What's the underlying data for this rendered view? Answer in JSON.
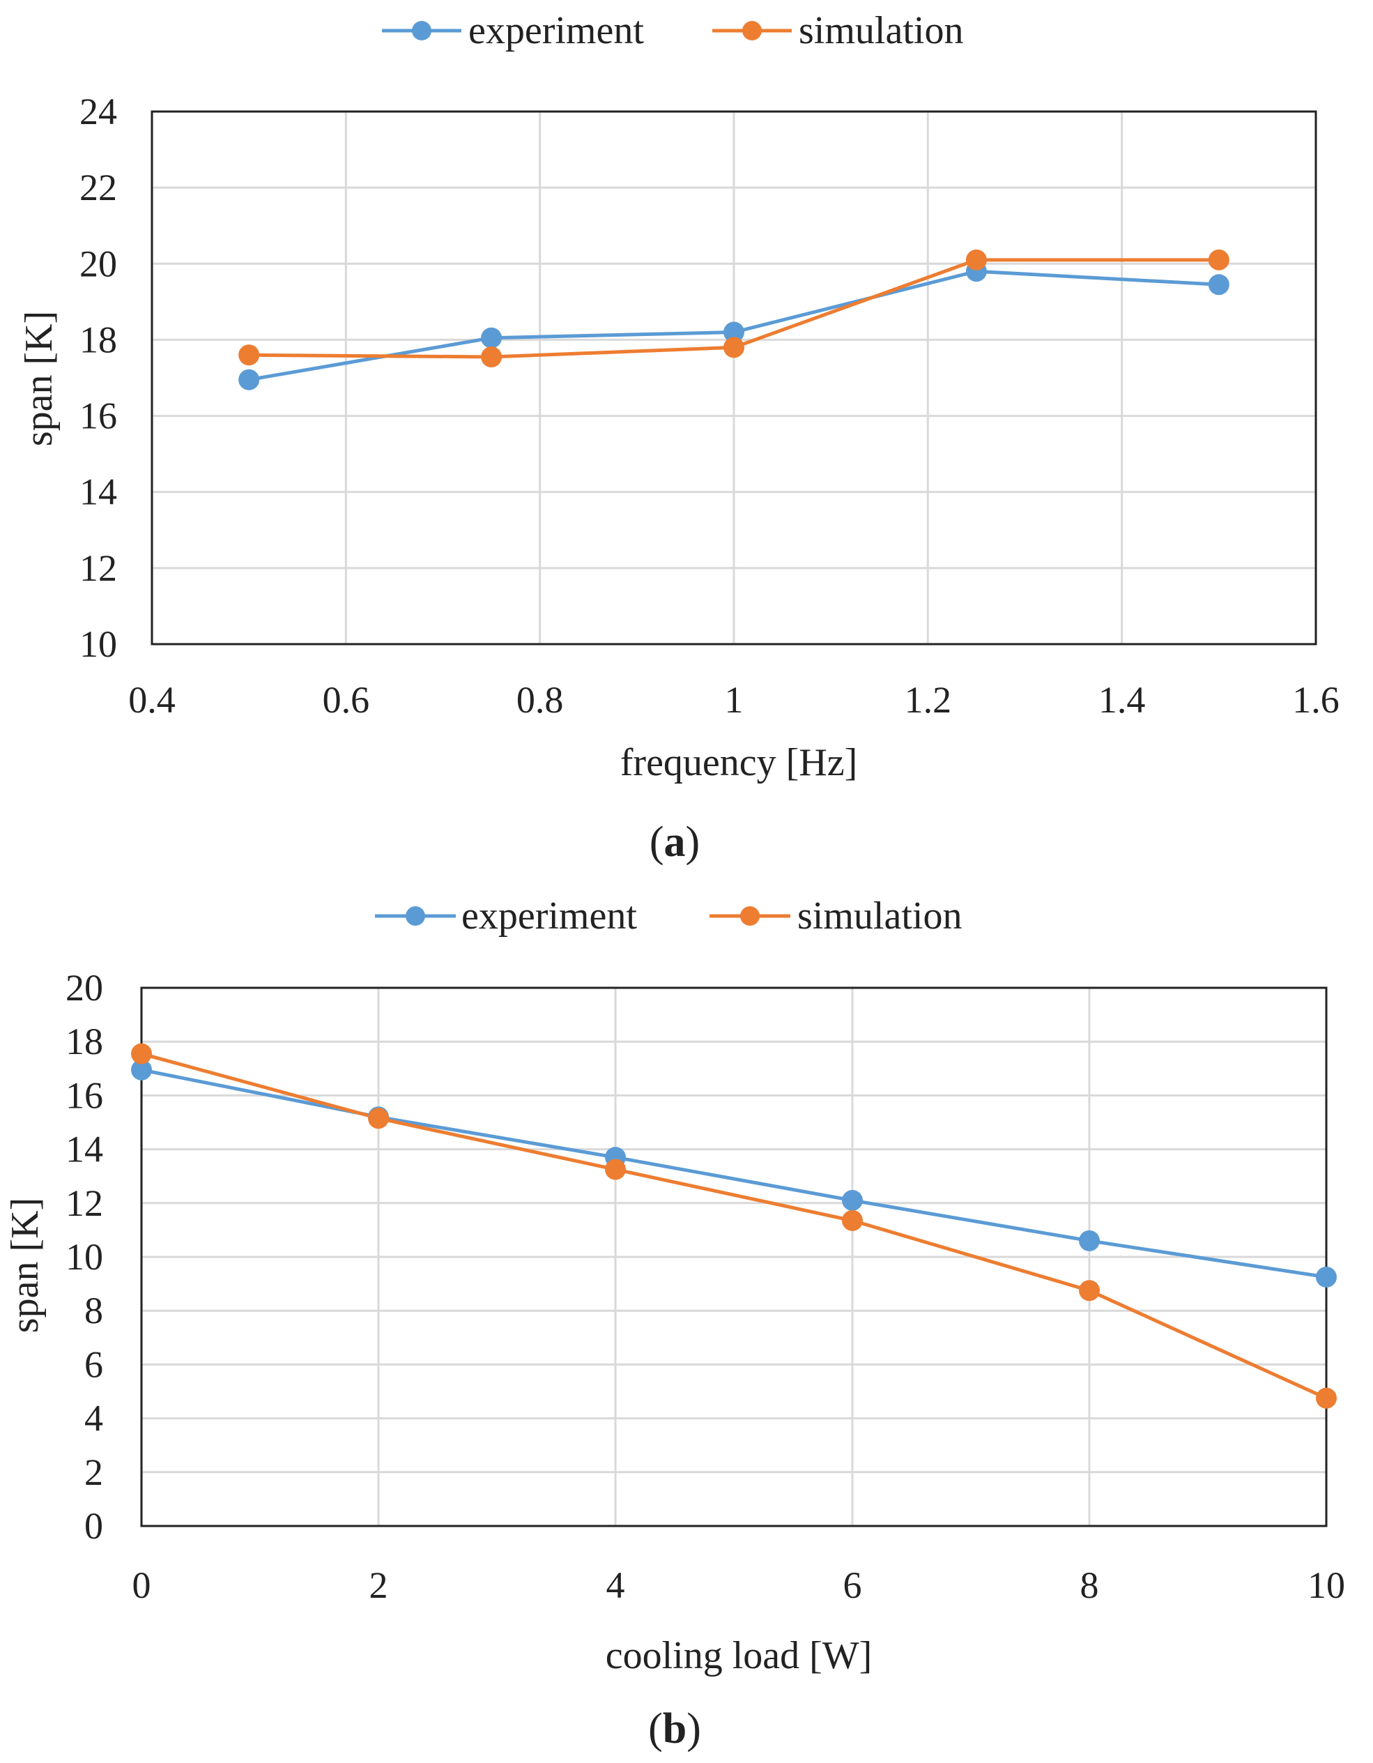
{
  "colors": {
    "experiment": "#5B9BD5",
    "simulation": "#ED7D31",
    "grid": "#D9D9D9",
    "frame": "#222222"
  },
  "chart_data": [
    {
      "type": "line",
      "panel": "a",
      "panel_label": {
        "open": "(",
        "letter": "a",
        "close": ")"
      },
      "xlabel": "frequency [Hz]",
      "ylabel": "span [K]",
      "xlim": [
        0.4,
        1.6
      ],
      "ylim": [
        10,
        24
      ],
      "xticks": [
        0.4,
        0.6,
        0.8,
        1.0,
        1.2,
        1.4,
        1.6
      ],
      "xtick_labels": [
        "0.4",
        "0.6",
        "0.8",
        "1",
        "1.2",
        "1.4",
        "1.6"
      ],
      "yticks": [
        10,
        12,
        14,
        16,
        18,
        20,
        22,
        24
      ],
      "ytick_labels": [
        "10",
        "12",
        "14",
        "16",
        "18",
        "20",
        "22",
        "24"
      ],
      "grid": true,
      "legend_position": "top-center",
      "x": [
        0.5,
        0.75,
        1.0,
        1.25,
        1.5
      ],
      "series": [
        {
          "name": "experiment",
          "values": [
            16.95,
            18.05,
            18.2,
            19.8,
            19.45
          ]
        },
        {
          "name": "simulation",
          "values": [
            17.6,
            17.55,
            17.8,
            20.1,
            20.1
          ]
        }
      ]
    },
    {
      "type": "line",
      "panel": "b",
      "panel_label": {
        "open": "(",
        "letter": "b",
        "close": ")"
      },
      "xlabel": "cooling load [W]",
      "ylabel": "span [K]",
      "xlim": [
        0,
        10
      ],
      "ylim": [
        0,
        20
      ],
      "xticks": [
        0,
        2,
        4,
        6,
        8,
        10
      ],
      "xtick_labels": [
        "0",
        "2",
        "4",
        "6",
        "8",
        "10"
      ],
      "yticks": [
        0,
        2,
        4,
        6,
        8,
        10,
        12,
        14,
        16,
        18,
        20
      ],
      "ytick_labels": [
        "0",
        "2",
        "4",
        "6",
        "8",
        "10",
        "12",
        "14",
        "16",
        "18",
        "20"
      ],
      "grid": true,
      "legend_position": "top-center",
      "x": [
        0,
        2,
        4,
        6,
        8,
        10
      ],
      "series": [
        {
          "name": "experiment",
          "values": [
            16.95,
            15.2,
            13.7,
            12.1,
            10.6,
            9.25
          ]
        },
        {
          "name": "simulation",
          "values": [
            17.55,
            15.15,
            13.25,
            11.35,
            8.75,
            4.75
          ]
        }
      ]
    }
  ]
}
